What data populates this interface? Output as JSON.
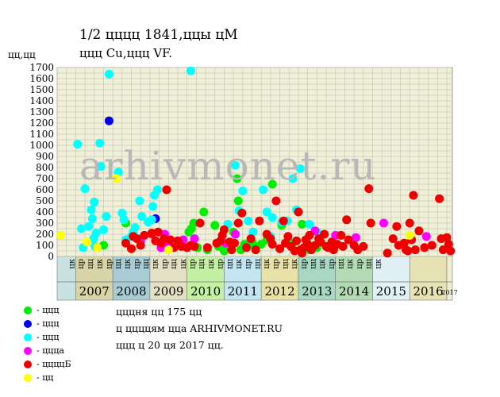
{
  "header": {
    "title": "1/2 цццц 1841,ццы цМ",
    "subtitle": "ццц Cu,ццц VF.",
    "y_unit": "цц,цц"
  },
  "watermark": "arhivmonet.ru",
  "legend": [
    {
      "label": "- ццц",
      "color": "#00ee00"
    },
    {
      "label": "- ццц",
      "color": "#0000ee"
    },
    {
      "label": "- ццц",
      "color": "#00ffff"
    },
    {
      "label": "- ццца",
      "color": "#ff00ff"
    },
    {
      "label": "- ццццБ",
      "color": "#ee0000"
    },
    {
      "label": "- цц",
      "color": "#ffff00"
    }
  ],
  "info": {
    "line1": "цццня цц 175 цц",
    "line2": "ц ццццям цца ARHIVMONET.RU",
    "line3": "ццц ц 20 ця 2017 цц."
  },
  "chart_data": {
    "type": "scatter",
    "title": "1/2 цццц 1841,ццы цМ",
    "ylabel": "цц,цц",
    "ylim": [
      0,
      1700
    ],
    "yticks": [
      0,
      100,
      200,
      300,
      400,
      500,
      600,
      700,
      800,
      900,
      1000,
      1100,
      1200,
      1300,
      1400,
      1500,
      1600,
      1700
    ],
    "grid": true,
    "x_range": [
      2006.5,
      2017.15
    ],
    "years": [
      {
        "label": "",
        "start": 2006.5,
        "end": 2007,
        "color": "#c8e2e2"
      },
      {
        "label": "2007",
        "start": 2007,
        "end": 2008,
        "color": "#d8d4a8"
      },
      {
        "label": "2008",
        "start": 2008,
        "end": 2009,
        "color": "#a8ccd4"
      },
      {
        "label": "2009",
        "start": 2009,
        "end": 2010,
        "color": "#e4e0c4"
      },
      {
        "label": "2010",
        "start": 2010,
        "end": 2011,
        "color": "#c4f0a4"
      },
      {
        "label": "2011",
        "start": 2011,
        "end": 2012,
        "color": "#c4e6f2"
      },
      {
        "label": "2012",
        "start": 2012,
        "end": 2013,
        "color": "#e8e2a8"
      },
      {
        "label": "2013",
        "start": 2013,
        "end": 2014,
        "color": "#a8d8c4"
      },
      {
        "label": "2014",
        "start": 2014,
        "end": 2015,
        "color": "#b4dcb4"
      },
      {
        "label": "2015",
        "start": 2015,
        "end": 2016,
        "color": "#e0f0f4"
      },
      {
        "label": "2016",
        "start": 2016,
        "end": 2017,
        "color": "#e6e2b4"
      },
      {
        "label": "2017",
        "start": 2017,
        "end": 2017.15,
        "color": "#f2eed2"
      }
    ],
    "quarter_labels": [
      "цк",
      "цр",
      "цц",
      "цк",
      "цр",
      "цц",
      "цк",
      "цр",
      "цц",
      "цк",
      "цр",
      "цц",
      "цк",
      "цр",
      "цц",
      "цк",
      "цр",
      "цц",
      "цк",
      "цр",
      "цц",
      "цк",
      "цр",
      "цц",
      "цк",
      "цр",
      "цц",
      "цк",
      "цр",
      "цц",
      "цк",
      "цр",
      "цц",
      "цк"
    ],
    "series": [
      {
        "grade": "green",
        "color": "#00ee00",
        "points": [
          [
            2007.75,
            100
          ],
          [
            2008.35,
            300
          ],
          [
            2009.35,
            100
          ],
          [
            2010.05,
            220
          ],
          [
            2010.12,
            250
          ],
          [
            2010.18,
            300
          ],
          [
            2010.28,
            80
          ],
          [
            2010.45,
            400
          ],
          [
            2010.55,
            60
          ],
          [
            2010.75,
            280
          ],
          [
            2010.85,
            90
          ],
          [
            2011.0,
            50
          ],
          [
            2011.25,
            220
          ],
          [
            2011.35,
            700
          ],
          [
            2011.38,
            500
          ],
          [
            2011.45,
            60
          ],
          [
            2011.55,
            110
          ],
          [
            2011.75,
            130
          ],
          [
            2011.82,
            90
          ],
          [
            2012.0,
            110
          ],
          [
            2012.15,
            150
          ],
          [
            2012.3,
            650
          ],
          [
            2012.55,
            280
          ],
          [
            2012.75,
            130
          ],
          [
            2012.85,
            120
          ],
          [
            2013.1,
            290
          ],
          [
            2013.3,
            60
          ],
          [
            2013.5,
            80
          ]
        ]
      },
      {
        "grade": "blue",
        "color": "#0000ee",
        "points": [
          [
            2007.9,
            1220
          ],
          [
            2009.15,
            340
          ]
        ]
      },
      {
        "grade": "cyan",
        "color": "#00ffff",
        "points": [
          [
            2007.05,
            1010
          ],
          [
            2007.15,
            250
          ],
          [
            2007.2,
            80
          ],
          [
            2007.25,
            610
          ],
          [
            2007.35,
            270
          ],
          [
            2007.42,
            420
          ],
          [
            2007.45,
            340
          ],
          [
            2007.48,
            160
          ],
          [
            2007.5,
            490
          ],
          [
            2007.52,
            90
          ],
          [
            2007.55,
            210
          ],
          [
            2007.65,
            1020
          ],
          [
            2007.68,
            810
          ],
          [
            2007.75,
            240
          ],
          [
            2007.82,
            360
          ],
          [
            2007.9,
            1640
          ],
          [
            2008.15,
            760
          ],
          [
            2008.25,
            390
          ],
          [
            2008.3,
            330
          ],
          [
            2008.35,
            150
          ],
          [
            2008.5,
            180
          ],
          [
            2008.55,
            220
          ],
          [
            2008.6,
            260
          ],
          [
            2008.72,
            500
          ],
          [
            2008.78,
            360
          ],
          [
            2008.95,
            310
          ],
          [
            2009.05,
            330
          ],
          [
            2009.08,
            450
          ],
          [
            2009.12,
            550
          ],
          [
            2009.2,
            600
          ],
          [
            2010.1,
            1670
          ],
          [
            2011.1,
            290
          ],
          [
            2011.3,
            820
          ],
          [
            2011.4,
            410
          ],
          [
            2011.5,
            590
          ],
          [
            2011.65,
            320
          ],
          [
            2011.78,
            220
          ],
          [
            2012.05,
            600
          ],
          [
            2012.15,
            400
          ],
          [
            2012.3,
            350
          ],
          [
            2012.55,
            310
          ],
          [
            2012.7,
            320
          ],
          [
            2012.85,
            700
          ],
          [
            2012.95,
            420
          ],
          [
            2013.05,
            790
          ],
          [
            2013.3,
            290
          ],
          [
            2013.5,
            220
          ],
          [
            2012.25,
            180
          ]
        ]
      },
      {
        "grade": "magenta",
        "color": "#ff00ff",
        "points": [
          [
            2008.75,
            140
          ],
          [
            2009.05,
            200
          ],
          [
            2009.3,
            80
          ],
          [
            2009.4,
            200
          ],
          [
            2009.5,
            110
          ],
          [
            2009.55,
            90
          ],
          [
            2009.9,
            150
          ],
          [
            2010.2,
            160
          ],
          [
            2011.05,
            120
          ],
          [
            2011.3,
            200
          ],
          [
            2013.45,
            230
          ],
          [
            2014.0,
            190
          ],
          [
            2014.55,
            170
          ],
          [
            2015.3,
            300
          ],
          [
            2016.45,
            180
          ]
        ]
      },
      {
        "grade": "red",
        "color": "#ee0000",
        "points": [
          [
            2008.35,
            120
          ],
          [
            2008.5,
            70
          ],
          [
            2008.55,
            180
          ],
          [
            2008.65,
            160
          ],
          [
            2008.75,
            100
          ],
          [
            2008.85,
            190
          ],
          [
            2009.05,
            210
          ],
          [
            2009.15,
            140
          ],
          [
            2009.22,
            220
          ],
          [
            2009.3,
            120
          ],
          [
            2009.38,
            160
          ],
          [
            2009.45,
            600
          ],
          [
            2009.55,
            150
          ],
          [
            2009.65,
            80
          ],
          [
            2009.75,
            140
          ],
          [
            2009.85,
            90
          ],
          [
            2010.0,
            80
          ],
          [
            2010.1,
            100
          ],
          [
            2010.2,
            90
          ],
          [
            2010.35,
            300
          ],
          [
            2010.55,
            80
          ],
          [
            2010.8,
            120
          ],
          [
            2010.9,
            140
          ],
          [
            2010.95,
            190
          ],
          [
            2011.0,
            240
          ],
          [
            2011.15,
            130
          ],
          [
            2011.2,
            60
          ],
          [
            2011.28,
            120
          ],
          [
            2011.38,
            300
          ],
          [
            2011.48,
            390
          ],
          [
            2011.6,
            80
          ],
          [
            2011.72,
            160
          ],
          [
            2011.85,
            60
          ],
          [
            2011.95,
            320
          ],
          [
            2012.15,
            200
          ],
          [
            2012.25,
            160
          ],
          [
            2012.3,
            110
          ],
          [
            2012.4,
            500
          ],
          [
            2012.5,
            70
          ],
          [
            2012.6,
            320
          ],
          [
            2012.65,
            120
          ],
          [
            2012.72,
            180
          ],
          [
            2012.8,
            90
          ],
          [
            2012.9,
            50
          ],
          [
            2012.95,
            140
          ],
          [
            2013.0,
            400
          ],
          [
            2013.05,
            60
          ],
          [
            2013.1,
            30
          ],
          [
            2013.15,
            80
          ],
          [
            2013.2,
            150
          ],
          [
            2013.25,
            110
          ],
          [
            2013.3,
            190
          ],
          [
            2013.35,
            60
          ],
          [
            2013.45,
            100
          ],
          [
            2013.55,
            160
          ],
          [
            2013.6,
            130
          ],
          [
            2013.7,
            200
          ],
          [
            2013.75,
            90
          ],
          [
            2013.8,
            80
          ],
          [
            2013.9,
            130
          ],
          [
            2013.95,
            60
          ],
          [
            2014.05,
            110
          ],
          [
            2014.15,
            190
          ],
          [
            2014.2,
            90
          ],
          [
            2014.3,
            330
          ],
          [
            2014.35,
            150
          ],
          [
            2014.5,
            100
          ],
          [
            2014.6,
            60
          ],
          [
            2014.75,
            90
          ],
          [
            2014.9,
            610
          ],
          [
            2014.95,
            300
          ],
          [
            2015.4,
            30
          ],
          [
            2015.55,
            160
          ],
          [
            2015.65,
            270
          ],
          [
            2015.7,
            100
          ],
          [
            2015.85,
            120
          ],
          [
            2015.9,
            60
          ],
          [
            2015.95,
            50
          ],
          [
            2016.0,
            300
          ],
          [
            2016.05,
            150
          ],
          [
            2016.1,
            550
          ],
          [
            2016.15,
            60
          ],
          [
            2016.25,
            230
          ],
          [
            2016.4,
            80
          ],
          [
            2016.6,
            100
          ],
          [
            2016.8,
            520
          ],
          [
            2016.85,
            160
          ],
          [
            2016.9,
            60
          ],
          [
            2017.0,
            170
          ],
          [
            2017.05,
            110
          ],
          [
            2017.1,
            50
          ]
        ]
      },
      {
        "grade": "yellow",
        "color": "#ffff00",
        "points": [
          [
            2006.6,
            190
          ],
          [
            2007.3,
            130
          ],
          [
            2007.58,
            80
          ],
          [
            2008.1,
            700
          ],
          [
            2009.5,
            60
          ],
          [
            2016.0,
            190
          ]
        ]
      }
    ]
  }
}
